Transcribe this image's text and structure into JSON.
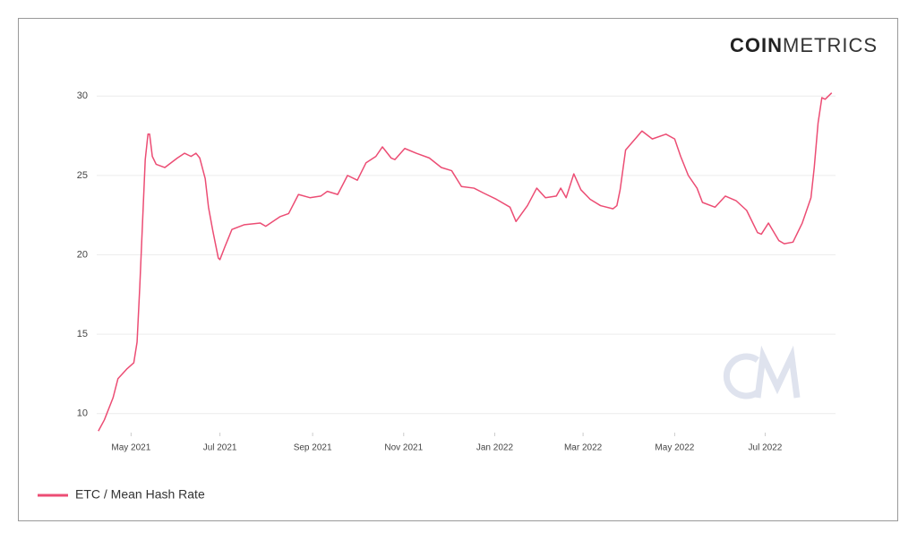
{
  "chart_data": {
    "type": "line",
    "logo": {
      "bold": "COIN",
      "light": "METRICS"
    },
    "x": [
      2021.273,
      2021.284,
      2021.3,
      2021.309,
      2021.325,
      2021.338,
      2021.344,
      2021.349,
      2021.354,
      2021.359,
      2021.364,
      2021.367,
      2021.372,
      2021.379,
      2021.395,
      2021.418,
      2021.431,
      2021.443,
      2021.452,
      2021.459,
      2021.469,
      2021.475,
      2021.483,
      2021.493,
      2021.496,
      2021.505,
      2021.518,
      2021.541,
      2021.57,
      2021.58,
      2021.606,
      2021.622,
      2021.64,
      2021.661,
      2021.681,
      2021.693,
      2021.712,
      2021.73,
      2021.748,
      2021.764,
      2021.782,
      2021.794,
      2021.81,
      2021.817,
      2021.835,
      2021.856,
      2021.88,
      2021.902,
      2021.921,
      2021.939,
      2021.962,
      2021.979,
      2022.003,
      2022.028,
      2022.039,
      2022.06,
      2022.077,
      2022.093,
      2022.113,
      2022.121,
      2022.131,
      2022.145,
      2022.158,
      2022.175,
      2022.194,
      2022.217,
      2022.224,
      2022.23,
      2022.24,
      2022.26,
      2022.27,
      2022.289,
      2022.314,
      2022.33,
      2022.341,
      2022.355,
      2022.371,
      2022.381,
      2022.404,
      2022.423,
      2022.443,
      2022.462,
      2022.482,
      2022.489,
      2022.502,
      2022.521,
      2022.531,
      2022.547,
      2022.564,
      2022.58,
      2022.586,
      2022.593,
      2022.6,
      2022.606,
      2022.618
    ],
    "series": [
      {
        "name": "ETC / Mean Hash Rate",
        "color": "#ec4d74",
        "values": [
          8.9,
          9.6,
          11.0,
          12.2,
          12.8,
          13.2,
          14.5,
          18,
          22,
          26,
          27.6,
          27.6,
          26.2,
          25.7,
          25.5,
          26.1,
          26.4,
          26.2,
          26.4,
          26.1,
          24.8,
          23,
          21.5,
          19.8,
          19.7,
          20.5,
          21.6,
          21.9,
          22.0,
          21.8,
          22.4,
          22.6,
          23.8,
          23.6,
          23.7,
          24.0,
          23.8,
          25.0,
          24.7,
          25.8,
          26.2,
          26.8,
          26.1,
          26.0,
          26.7,
          26.4,
          26.1,
          25.5,
          25.3,
          24.3,
          24.2,
          23.9,
          23.5,
          23.0,
          22.1,
          23.1,
          24.2,
          23.6,
          23.7,
          24.2,
          23.6,
          25.1,
          24.1,
          23.5,
          23.1,
          22.9,
          23.1,
          24.1,
          26.6,
          27.4,
          27.8,
          27.3,
          27.6,
          27.3,
          26.2,
          25.0,
          24.2,
          23.3,
          23.0,
          23.7,
          23.4,
          22.8,
          21.4,
          21.3,
          22.0,
          20.9,
          20.7,
          20.8,
          22.0,
          23.6,
          25.5,
          28.3,
          29.9,
          29.8,
          30.2
        ]
      }
    ],
    "xlim": [
      2021.27,
      2022.625
    ],
    "xticks": [
      {
        "value": 2021.333,
        "label": "May 2021"
      },
      {
        "value": 2021.496,
        "label": "Jul 2021"
      },
      {
        "value": 2021.666,
        "label": "Sep 2021"
      },
      {
        "value": 2021.833,
        "label": "Nov 2021"
      },
      {
        "value": 2022.0,
        "label": "Jan 2022"
      },
      {
        "value": 2022.162,
        "label": "Mar 2022"
      },
      {
        "value": 2022.33,
        "label": "May 2022"
      },
      {
        "value": 2022.496,
        "label": "Jul 2022"
      }
    ],
    "ylim": [
      8.8,
      31.2
    ],
    "yticks": [
      10,
      15,
      20,
      25,
      30
    ],
    "grid": true
  }
}
